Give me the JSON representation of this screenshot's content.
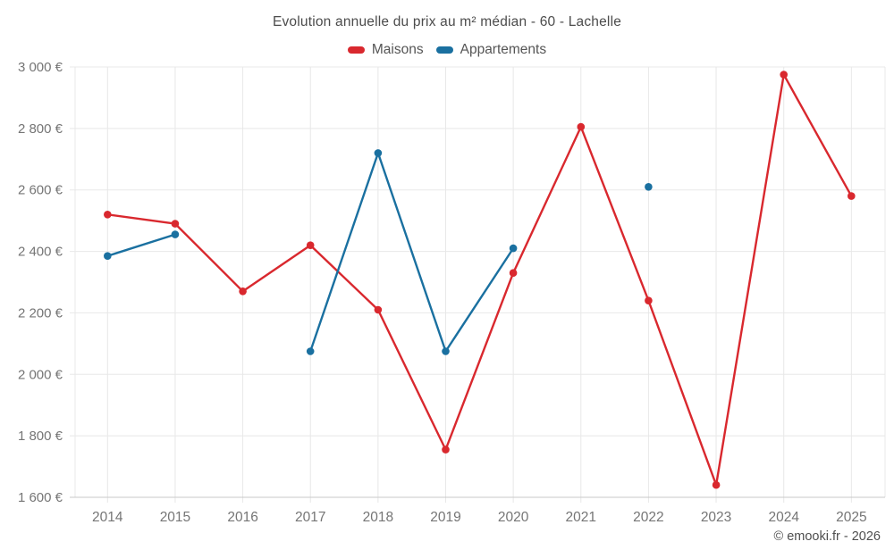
{
  "title": "Evolution annuelle du prix au m² médian - 60 - Lachelle",
  "legend": [
    {
      "label": "Maisons",
      "color": "#d9282e"
    },
    {
      "label": "Appartements",
      "color": "#1a70a0"
    }
  ],
  "footer": {
    "copyright": "© emooki.fr - 2026"
  },
  "colors": {
    "maisons": "#d9282e",
    "appartements": "#1a70a0",
    "gridline": "#e8e8e8",
    "axis_line": "#c9c9c9",
    "tick_label": "#757575",
    "title_text": "#4c4c4c"
  },
  "chart_data": {
    "type": "line",
    "title": "Evolution annuelle du prix au m² médian - 60 - Lachelle",
    "x": [
      2014,
      2015,
      2016,
      2017,
      2018,
      2019,
      2020,
      2021,
      2022,
      2023,
      2024,
      2025
    ],
    "series": [
      {
        "name": "Maisons",
        "color": "#d9282e",
        "values": [
          2520,
          2490,
          2270,
          2420,
          2210,
          1755,
          2330,
          2805,
          2240,
          1640,
          2975,
          2580
        ]
      },
      {
        "name": "Appartements",
        "color": "#1a70a0",
        "values": [
          2385,
          2455,
          null,
          2075,
          2720,
          2075,
          2410,
          null,
          2610,
          null,
          null,
          null
        ]
      }
    ],
    "ylim": [
      1600,
      3000
    ],
    "yticks": [
      1600,
      1800,
      2000,
      2200,
      2400,
      2600,
      2800,
      3000
    ],
    "ytick_labels": [
      "1 600 €",
      "1 800 €",
      "2 000 €",
      "2 200 €",
      "2 400 €",
      "2 600 €",
      "2 800 €",
      "3 000 €"
    ],
    "xtick_labels": [
      "2014",
      "2015",
      "2016",
      "2017",
      "2018",
      "2019",
      "2020",
      "2021",
      "2022",
      "2023",
      "2024",
      "2025"
    ],
    "ylabel_format": "thousands-space-euro",
    "grid": true,
    "legend_position": "top",
    "unit": "€/m²"
  }
}
